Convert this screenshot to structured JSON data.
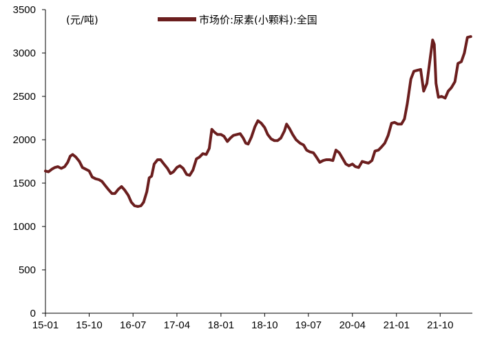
{
  "chart_data": {
    "type": "line",
    "unit_label": "(元/吨)",
    "series": [
      {
        "name": "市场价:尿素(小颗料):全国",
        "color": "#6b1e1e",
        "points": [
          [
            "2015-01-01",
            1640
          ],
          [
            "2015-01-20",
            1630
          ],
          [
            "2015-02-10",
            1660
          ],
          [
            "2015-03-01",
            1680
          ],
          [
            "2015-03-20",
            1690
          ],
          [
            "2015-04-10",
            1670
          ],
          [
            "2015-05-01",
            1690
          ],
          [
            "2015-05-20",
            1740
          ],
          [
            "2015-06-05",
            1810
          ],
          [
            "2015-06-20",
            1830
          ],
          [
            "2015-07-10",
            1800
          ],
          [
            "2015-08-01",
            1750
          ],
          [
            "2015-08-20",
            1680
          ],
          [
            "2015-09-10",
            1660
          ],
          [
            "2015-10-01",
            1640
          ],
          [
            "2015-10-20",
            1570
          ],
          [
            "2015-11-10",
            1550
          ],
          [
            "2015-12-01",
            1540
          ],
          [
            "2015-12-20",
            1520
          ],
          [
            "2016-01-10",
            1470
          ],
          [
            "2016-02-01",
            1420
          ],
          [
            "2016-02-20",
            1380
          ],
          [
            "2016-03-10",
            1380
          ],
          [
            "2016-04-01",
            1430
          ],
          [
            "2016-04-20",
            1460
          ],
          [
            "2016-05-10",
            1420
          ],
          [
            "2016-06-01",
            1360
          ],
          [
            "2016-06-20",
            1280
          ],
          [
            "2016-07-10",
            1240
          ],
          [
            "2016-08-01",
            1230
          ],
          [
            "2016-08-20",
            1240
          ],
          [
            "2016-09-05",
            1280
          ],
          [
            "2016-09-25",
            1400
          ],
          [
            "2016-10-10",
            1560
          ],
          [
            "2016-10-25",
            1580
          ],
          [
            "2016-11-10",
            1720
          ],
          [
            "2016-12-01",
            1770
          ],
          [
            "2016-12-20",
            1770
          ],
          [
            "2017-01-10",
            1720
          ],
          [
            "2017-02-01",
            1670
          ],
          [
            "2017-02-20",
            1610
          ],
          [
            "2017-03-10",
            1630
          ],
          [
            "2017-04-01",
            1680
          ],
          [
            "2017-04-20",
            1700
          ],
          [
            "2017-05-10",
            1670
          ],
          [
            "2017-06-01",
            1600
          ],
          [
            "2017-06-20",
            1590
          ],
          [
            "2017-07-10",
            1650
          ],
          [
            "2017-08-01",
            1780
          ],
          [
            "2017-08-20",
            1800
          ],
          [
            "2017-09-10",
            1840
          ],
          [
            "2017-10-01",
            1830
          ],
          [
            "2017-10-20",
            1900
          ],
          [
            "2017-11-05",
            2120
          ],
          [
            "2017-11-20",
            2090
          ],
          [
            "2017-12-10",
            2060
          ],
          [
            "2018-01-01",
            2060
          ],
          [
            "2018-01-20",
            2040
          ],
          [
            "2018-02-10",
            1980
          ],
          [
            "2018-03-01",
            2020
          ],
          [
            "2018-03-20",
            2050
          ],
          [
            "2018-04-10",
            2060
          ],
          [
            "2018-05-01",
            2070
          ],
          [
            "2018-05-20",
            2020
          ],
          [
            "2018-06-05",
            1960
          ],
          [
            "2018-06-20",
            1950
          ],
          [
            "2018-07-10",
            2030
          ],
          [
            "2018-08-01",
            2150
          ],
          [
            "2018-08-20",
            2220
          ],
          [
            "2018-09-10",
            2190
          ],
          [
            "2018-10-01",
            2140
          ],
          [
            "2018-10-20",
            2060
          ],
          [
            "2018-11-10",
            2010
          ],
          [
            "2018-12-01",
            1990
          ],
          [
            "2018-12-20",
            1990
          ],
          [
            "2019-01-10",
            2020
          ],
          [
            "2019-02-01",
            2100
          ],
          [
            "2019-02-15",
            2180
          ],
          [
            "2019-03-05",
            2130
          ],
          [
            "2019-03-25",
            2060
          ],
          [
            "2019-04-15",
            2000
          ],
          [
            "2019-05-10",
            1960
          ],
          [
            "2019-06-01",
            1940
          ],
          [
            "2019-06-20",
            1880
          ],
          [
            "2019-07-10",
            1860
          ],
          [
            "2019-08-01",
            1850
          ],
          [
            "2019-08-20",
            1800
          ],
          [
            "2019-09-10",
            1740
          ],
          [
            "2019-10-01",
            1760
          ],
          [
            "2019-10-20",
            1770
          ],
          [
            "2019-11-10",
            1770
          ],
          [
            "2019-12-01",
            1760
          ],
          [
            "2019-12-20",
            1880
          ],
          [
            "2020-01-10",
            1850
          ],
          [
            "2020-02-01",
            1780
          ],
          [
            "2020-02-20",
            1720
          ],
          [
            "2020-03-10",
            1700
          ],
          [
            "2020-04-01",
            1720
          ],
          [
            "2020-04-20",
            1690
          ],
          [
            "2020-05-10",
            1680
          ],
          [
            "2020-06-01",
            1750
          ],
          [
            "2020-06-20",
            1740
          ],
          [
            "2020-07-10",
            1730
          ],
          [
            "2020-08-01",
            1760
          ],
          [
            "2020-08-20",
            1870
          ],
          [
            "2020-09-10",
            1880
          ],
          [
            "2020-10-01",
            1920
          ],
          [
            "2020-10-20",
            1960
          ],
          [
            "2020-11-10",
            2050
          ],
          [
            "2020-12-01",
            2190
          ],
          [
            "2020-12-20",
            2200
          ],
          [
            "2021-01-10",
            2180
          ],
          [
            "2021-02-01",
            2180
          ],
          [
            "2021-02-20",
            2240
          ],
          [
            "2021-03-10",
            2420
          ],
          [
            "2021-04-01",
            2700
          ],
          [
            "2021-04-20",
            2790
          ],
          [
            "2021-05-10",
            2800
          ],
          [
            "2021-06-01",
            2810
          ],
          [
            "2021-06-20",
            2560
          ],
          [
            "2021-07-10",
            2650
          ],
          [
            "2021-08-01",
            2960
          ],
          [
            "2021-08-15",
            3150
          ],
          [
            "2021-08-25",
            3100
          ],
          [
            "2021-09-05",
            2650
          ],
          [
            "2021-09-20",
            2490
          ],
          [
            "2021-10-10",
            2500
          ],
          [
            "2021-11-01",
            2480
          ],
          [
            "2021-11-20",
            2560
          ],
          [
            "2021-12-10",
            2600
          ],
          [
            "2022-01-01",
            2670
          ],
          [
            "2022-01-20",
            2880
          ],
          [
            "2022-02-10",
            2900
          ],
          [
            "2022-03-01",
            3000
          ],
          [
            "2022-03-20",
            3180
          ],
          [
            "2022-04-10",
            3190
          ]
        ]
      }
    ],
    "x_ticks": [
      "15-01",
      "15-10",
      "16-07",
      "17-04",
      "18-01",
      "18-10",
      "19-07",
      "20-04",
      "21-01",
      "21-10"
    ],
    "x_range": [
      "2015-01-01",
      "2022-04-20"
    ],
    "y_ticks": [
      0,
      500,
      1000,
      1500,
      2000,
      2500,
      3000,
      3500
    ],
    "ylim": [
      0,
      3500
    ],
    "grid": false,
    "legend_position": "top-center"
  }
}
